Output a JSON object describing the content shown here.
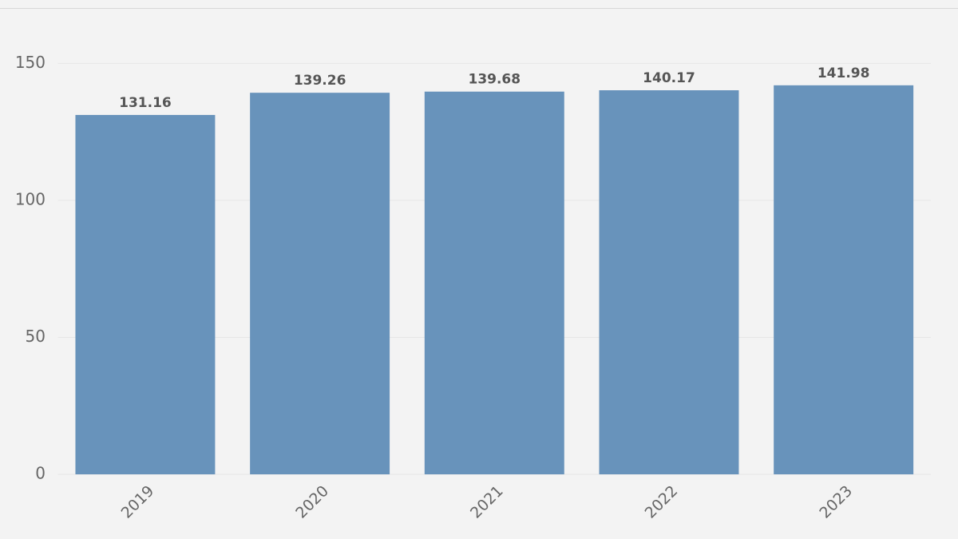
{
  "chart_data": {
    "type": "bar",
    "categories": [
      "2019",
      "2020",
      "2021",
      "2022",
      "2023"
    ],
    "values": [
      131.16,
      139.26,
      139.68,
      140.17,
      141.98
    ],
    "color": "#6893bb",
    "ylim": [
      0,
      160
    ],
    "yticks": [
      0,
      50,
      100,
      150
    ],
    "grid": true
  }
}
